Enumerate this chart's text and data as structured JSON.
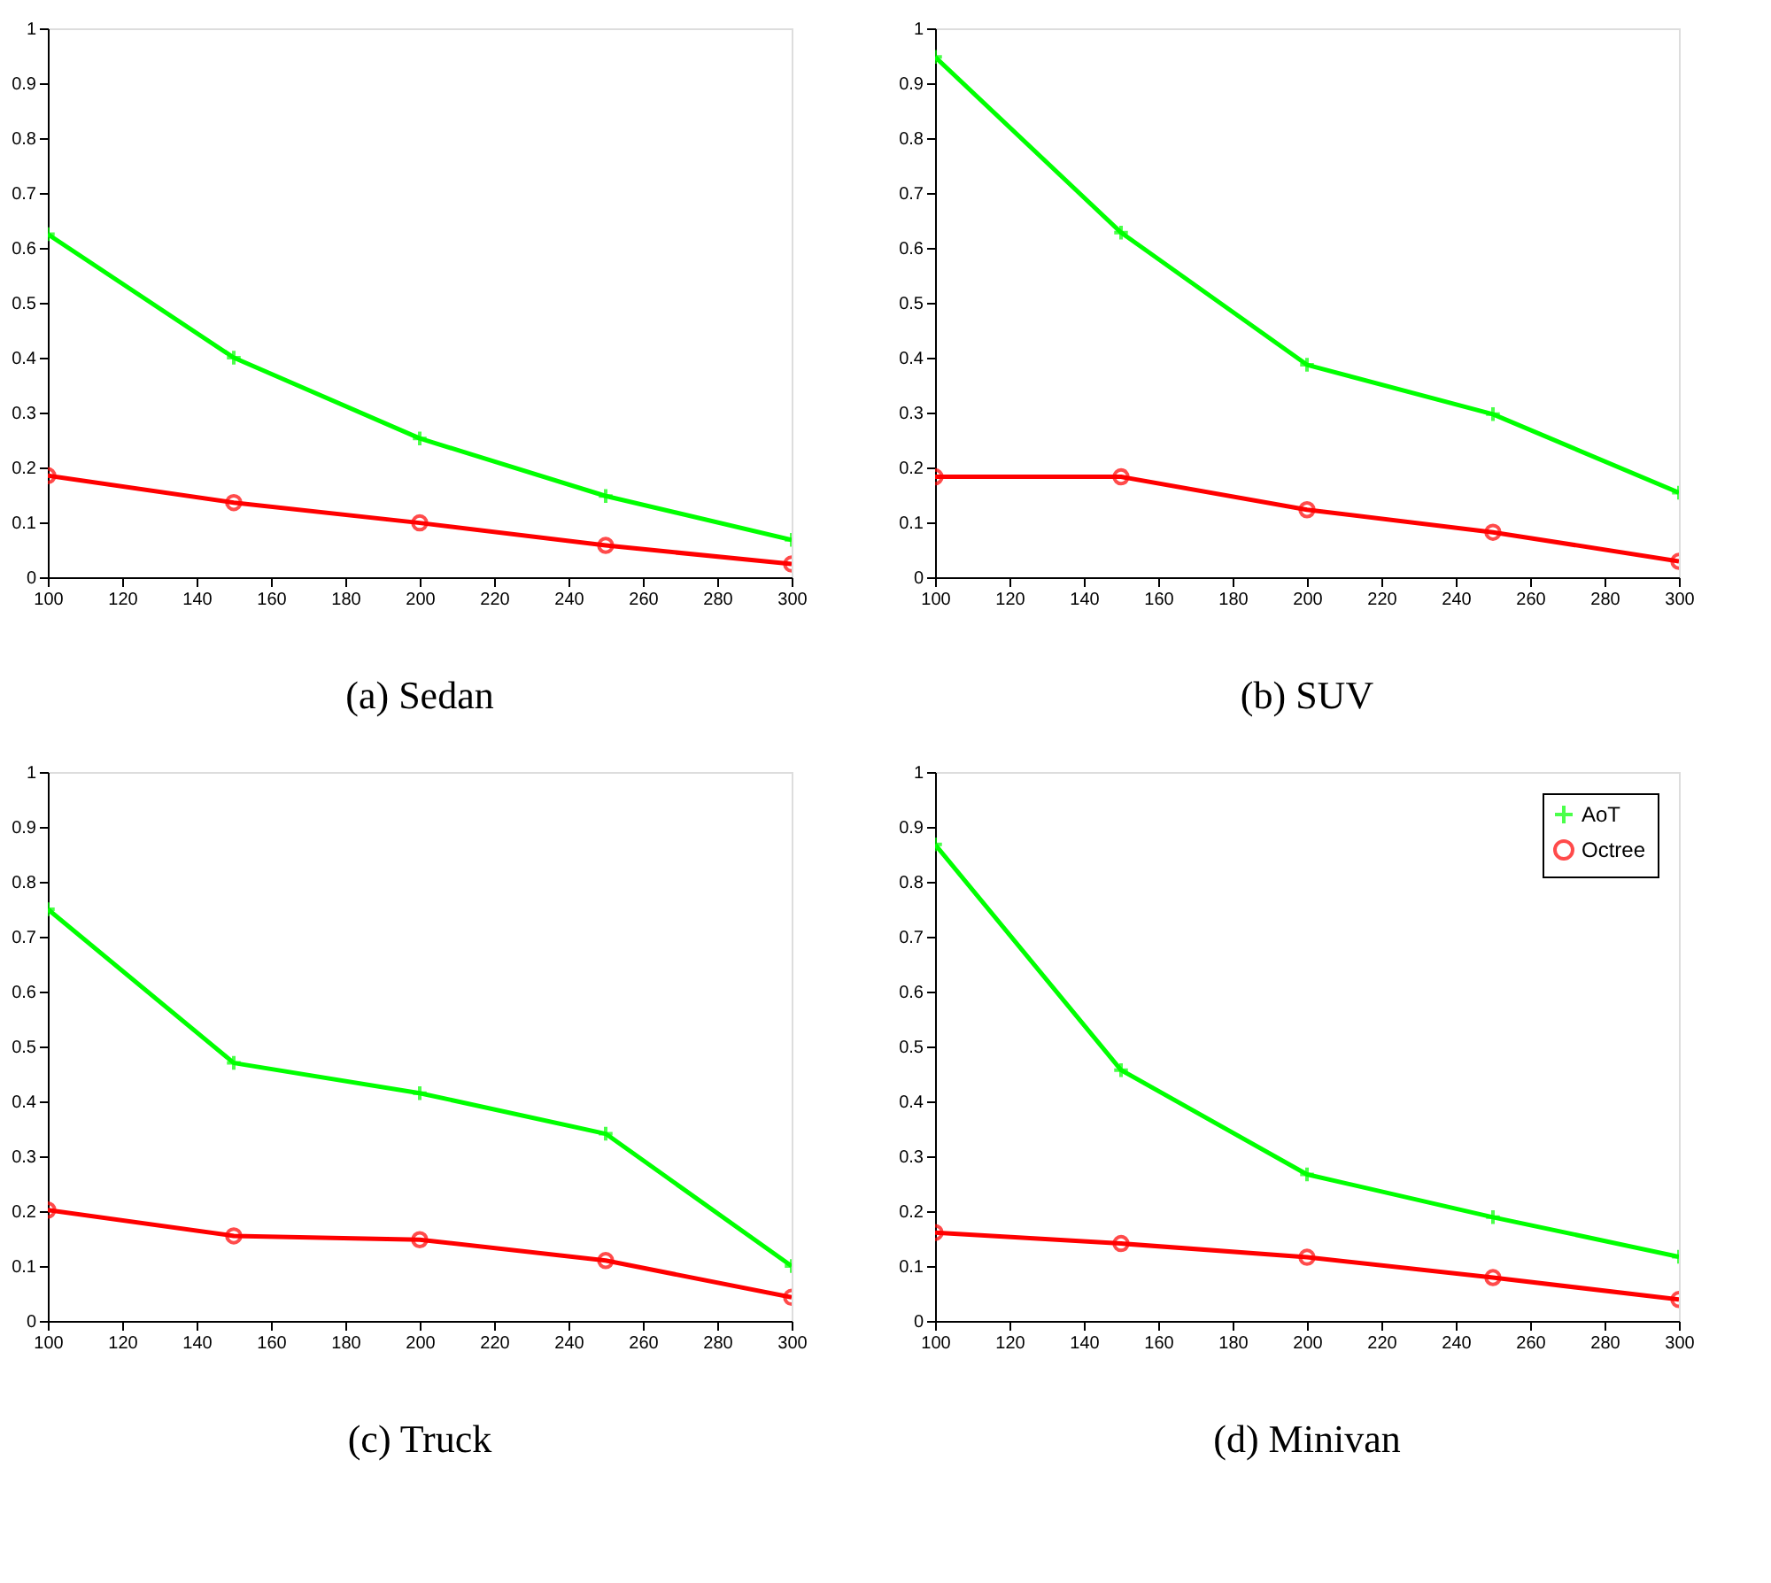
{
  "chart_data": [
    {
      "type": "line",
      "title": "(a) Sedan",
      "x": [
        100,
        150,
        200,
        250,
        300
      ],
      "xlim": [
        100,
        300
      ],
      "xticks": [
        100,
        120,
        140,
        160,
        180,
        200,
        220,
        240,
        260,
        280,
        300
      ],
      "ylim": [
        0,
        1
      ],
      "yticks": [
        0,
        0.1,
        0.2,
        0.3,
        0.4,
        0.5,
        0.6,
        0.7,
        0.8,
        0.9,
        1
      ],
      "grid": false,
      "legend": false,
      "series": [
        {
          "color": "#00ff00",
          "marker": "cross",
          "values": [
            0.625,
            0.4,
            0.253,
            0.148,
            0.068
          ]
        },
        {
          "color": "#ff0000",
          "marker": "circle",
          "values": [
            0.185,
            0.136,
            0.099,
            0.058,
            0.024
          ]
        }
      ]
    },
    {
      "type": "line",
      "title": "(b) SUV",
      "x": [
        100,
        150,
        200,
        250,
        300
      ],
      "xlim": [
        100,
        300
      ],
      "xticks": [
        100,
        120,
        140,
        160,
        180,
        200,
        220,
        240,
        260,
        280,
        300
      ],
      "ylim": [
        0,
        1
      ],
      "yticks": [
        0,
        0.1,
        0.2,
        0.3,
        0.4,
        0.5,
        0.6,
        0.7,
        0.8,
        0.9,
        1
      ],
      "grid": false,
      "legend": false,
      "series": [
        {
          "color": "#00ff00",
          "marker": "cross",
          "values": [
            0.948,
            0.628,
            0.387,
            0.297,
            0.154
          ]
        },
        {
          "color": "#ff0000",
          "marker": "circle",
          "values": [
            0.183,
            0.183,
            0.123,
            0.082,
            0.029
          ]
        }
      ]
    },
    {
      "type": "line",
      "title": "(c) Truck",
      "x": [
        100,
        150,
        200,
        250,
        300
      ],
      "xlim": [
        100,
        300
      ],
      "xticks": [
        100,
        120,
        140,
        160,
        180,
        200,
        220,
        240,
        260,
        280,
        300
      ],
      "ylim": [
        0,
        1
      ],
      "yticks": [
        0,
        0.1,
        0.2,
        0.3,
        0.4,
        0.5,
        0.6,
        0.7,
        0.8,
        0.9,
        1
      ],
      "grid": false,
      "legend": false,
      "series": [
        {
          "color": "#00ff00",
          "marker": "cross",
          "values": [
            0.75,
            0.47,
            0.415,
            0.341,
            0.1
          ]
        },
        {
          "color": "#ff0000",
          "marker": "circle",
          "values": [
            0.202,
            0.155,
            0.148,
            0.11,
            0.043
          ]
        }
      ]
    },
    {
      "type": "line",
      "title": "(d) Minivan",
      "x": [
        100,
        150,
        200,
        250,
        300
      ],
      "xlim": [
        100,
        300
      ],
      "xticks": [
        100,
        120,
        140,
        160,
        180,
        200,
        220,
        240,
        260,
        280,
        300
      ],
      "ylim": [
        0,
        1
      ],
      "yticks": [
        0,
        0.1,
        0.2,
        0.3,
        0.4,
        0.5,
        0.6,
        0.7,
        0.8,
        0.9,
        1
      ],
      "grid": false,
      "legend": "top right",
      "series": [
        {
          "name": "AoT",
          "color": "#00ff00",
          "marker": "cross",
          "values": [
            0.868,
            0.457,
            0.267,
            0.189,
            0.117
          ]
        },
        {
          "name": "Octree",
          "color": "#ff0000",
          "marker": "circle",
          "values": [
            0.161,
            0.141,
            0.116,
            0.079,
            0.039
          ]
        }
      ]
    }
  ]
}
